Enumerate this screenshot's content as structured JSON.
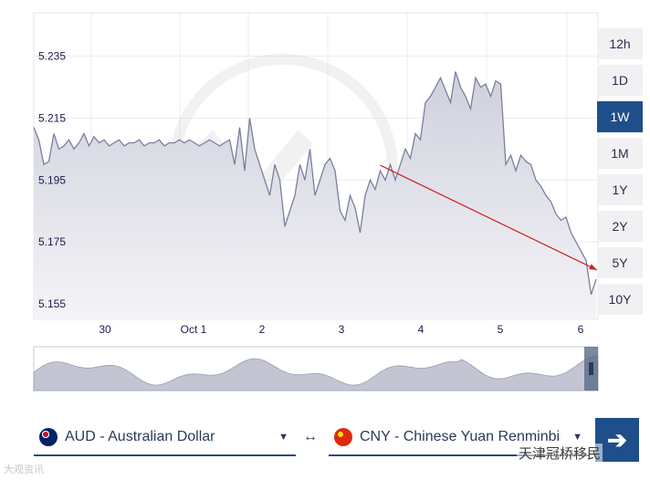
{
  "chart_data": {
    "type": "area",
    "title": "",
    "ylim": [
      5.15,
      5.249
    ],
    "y_ticks": [
      "5.235",
      "5.215",
      "5.195",
      "5.175",
      "5.155"
    ],
    "x_ticks": [
      "30",
      "Oct 1",
      "2",
      "3",
      "4",
      "5",
      "6"
    ],
    "series": [
      {
        "values": [
          5.212,
          5.208,
          5.2,
          5.201,
          5.21,
          5.205,
          5.206,
          5.208,
          5.205,
          5.207,
          5.21,
          5.206,
          5.209,
          5.207,
          5.208,
          5.206,
          5.207,
          5.208,
          5.206,
          5.207,
          5.207,
          5.208,
          5.206,
          5.207,
          5.207,
          5.208,
          5.206,
          5.207,
          5.207,
          5.208,
          5.207,
          5.208,
          5.207,
          5.206,
          5.207,
          5.208,
          5.207,
          5.206,
          5.207,
          5.208,
          5.2,
          5.212,
          5.198,
          5.215,
          5.205,
          5.2,
          5.195,
          5.19,
          5.2,
          5.195,
          5.18,
          5.185,
          5.19,
          5.2,
          5.195,
          5.205,
          5.19,
          5.195,
          5.2,
          5.202,
          5.198,
          5.185,
          5.182,
          5.19,
          5.186,
          5.178,
          5.19,
          5.195,
          5.192,
          5.198,
          5.195,
          5.2,
          5.195,
          5.2,
          5.205,
          5.202,
          5.21,
          5.208,
          5.22,
          5.222,
          5.225,
          5.228,
          5.224,
          5.22,
          5.23,
          5.225,
          5.222,
          5.218,
          5.228,
          5.225,
          5.226,
          5.222,
          5.227,
          5.226,
          5.2,
          5.203,
          5.198,
          5.203,
          5.201,
          5.2,
          5.195,
          5.193,
          5.19,
          5.188,
          5.184,
          5.182,
          5.183,
          5.178,
          5.175,
          5.172,
          5.169,
          5.158,
          5.163
        ]
      }
    ],
    "annotations": [
      {
        "type": "trend-line",
        "from_index": 69,
        "to_index": 112
      }
    ]
  },
  "range_buttons": [
    {
      "label": "12h",
      "active": false
    },
    {
      "label": "1D",
      "active": false
    },
    {
      "label": "1W",
      "active": true
    },
    {
      "label": "1M",
      "active": false
    },
    {
      "label": "1Y",
      "active": false
    },
    {
      "label": "2Y",
      "active": false
    },
    {
      "label": "5Y",
      "active": false
    },
    {
      "label": "10Y",
      "active": false
    }
  ],
  "from_currency": {
    "label": "AUD - Australian Dollar",
    "flag": "au-flag"
  },
  "to_currency": {
    "label": "CNY - Chinese Yuan Renminbi",
    "flag": "cn-flag"
  },
  "swap_symbol": "↔",
  "convert_symbol": "➔",
  "watermarks": {
    "left": "大观资讯",
    "right": "天津冠桥移民"
  },
  "colors": {
    "accent": "#1f4f8a",
    "line": "#7a7f9e",
    "fill": "#d9dae3",
    "trend": "#cc2222"
  }
}
